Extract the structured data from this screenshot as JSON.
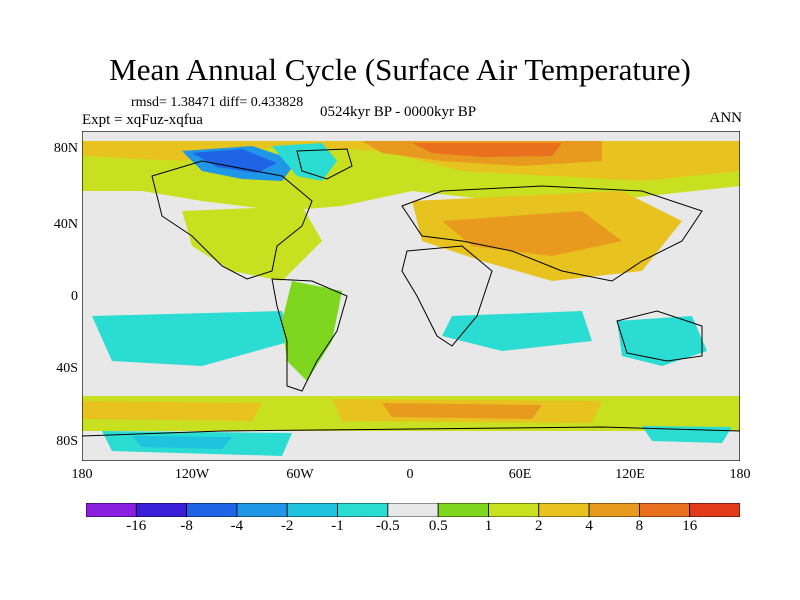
{
  "title": "Mean Annual Cycle (Surface Air Temperature)",
  "stats": "rmsd= 1.38471 diff= 0.433828",
  "experiment": "Expt = xqFuz-xqfua",
  "period": "0524kyr BP - 0000kyr BP",
  "season": "ANN",
  "lat_ticks": [
    "80N",
    "40N",
    "0",
    "40S",
    "80S"
  ],
  "lon_ticks": [
    "180",
    "120W",
    "60W",
    "0",
    "60E",
    "120E",
    "180"
  ],
  "legend": {
    "labels": [
      "-16",
      "-8",
      "-4",
      "-2",
      "-1",
      "-0.5",
      "0.5",
      "1",
      "2",
      "4",
      "8",
      "16"
    ],
    "colors": [
      "#8b1fe0",
      "#3b1fd6",
      "#1f63e6",
      "#1f96e6",
      "#1fc2df",
      "#2adcd2",
      "#e8e8e8",
      "#7fd61f",
      "#c8e01f",
      "#e8c21f",
      "#e89a1f",
      "#e8701f",
      "#e23b1a"
    ]
  },
  "map_colors": {
    "neutral": "#e8e8e8",
    "land": "#000000"
  }
}
